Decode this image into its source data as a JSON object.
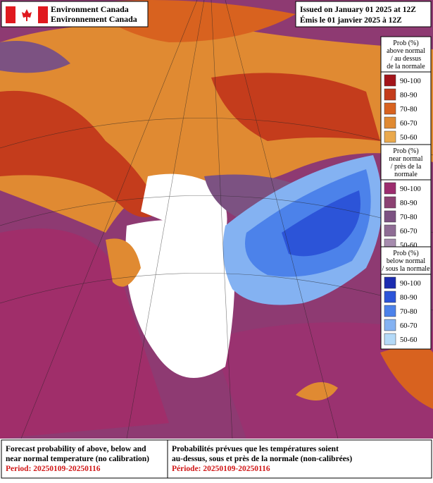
{
  "header": {
    "agency_en": "Environment Canada",
    "agency_fr": "Environnement Canada",
    "issued_en": "Issued on January 01 2025 at 12Z",
    "issued_fr": "Émis le 01 janvier 2025 à 12Z"
  },
  "legend": [
    {
      "title": [
        "Prob (%)",
        "above normal",
        "/ au dessus",
        "de la normale"
      ],
      "items": [
        {
          "label": "90-100",
          "color": "#a3141a"
        },
        {
          "label": "80-90",
          "color": "#c43c1c"
        },
        {
          "label": "70-80",
          "color": "#d8621f"
        },
        {
          "label": "60-70",
          "color": "#e08a32"
        },
        {
          "label": "50-60",
          "color": "#eaa94c"
        }
      ]
    },
    {
      "title": [
        "Prob (%)",
        "near normal",
        "/ près de la",
        "normale"
      ],
      "items": [
        {
          "label": "90-100",
          "color": "#9c2c6e"
        },
        {
          "label": "80-90",
          "color": "#8c4272"
        },
        {
          "label": "70-80",
          "color": "#7c5282"
        },
        {
          "label": "60-70",
          "color": "#8e6c94"
        },
        {
          "label": "50-60",
          "color": "#a68cae"
        }
      ]
    },
    {
      "title": [
        "Prob (%)",
        "below normal",
        "/ sous la normale"
      ],
      "items": [
        {
          "label": "90-100",
          "color": "#1c2cb0"
        },
        {
          "label": "80-90",
          "color": "#2c54d8"
        },
        {
          "label": "70-80",
          "color": "#4c82ea"
        },
        {
          "label": "60-70",
          "color": "#84b2f2"
        },
        {
          "label": "50-60",
          "color": "#b4daf8"
        }
      ]
    }
  ],
  "footer": {
    "en": [
      "Forecast probability of above, below and",
      "near normal temperature (no calibration)"
    ],
    "period_en": "Period: 20250109-20250116",
    "fr": [
      "Probabilités prévues que les températures soient",
      "au-dessus, sous et près de la normale (non-calibrées)"
    ],
    "period_fr": "Période: 20250109-20250116"
  }
}
